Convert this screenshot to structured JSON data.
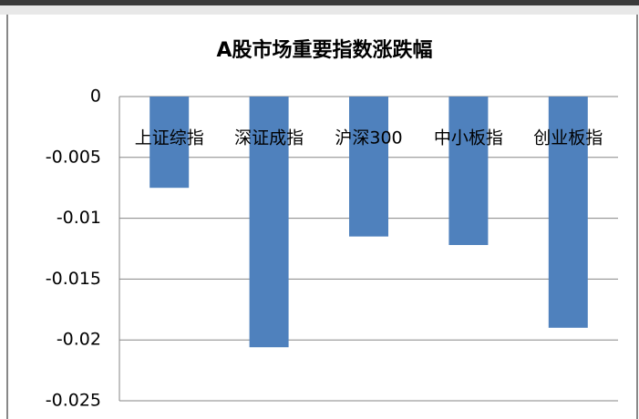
{
  "chart_data": {
    "type": "bar",
    "title": "A股市场重要指数涨跌幅",
    "categories": [
      "上证综指",
      "深证成指",
      "沪深300",
      "中小板指",
      "创业板指"
    ],
    "values": [
      -0.0075,
      -0.0206,
      -0.0115,
      -0.0122,
      -0.019
    ],
    "color": "#4f81bd",
    "ylim": [
      -0.025,
      0
    ],
    "yticks": [
      0,
      -0.005,
      -0.01,
      -0.015,
      -0.02,
      -0.025
    ],
    "grid": true
  }
}
